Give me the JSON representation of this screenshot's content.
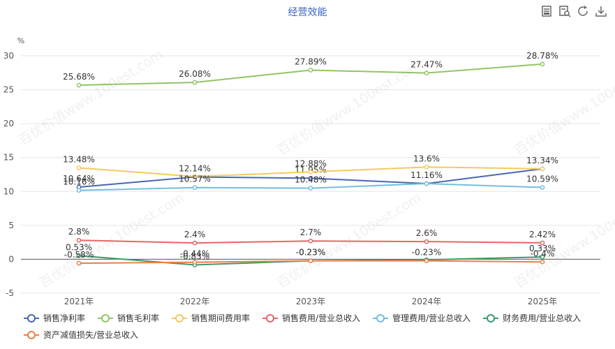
{
  "header": {
    "title": "经营效能"
  },
  "toolbar": [
    "data-view-icon",
    "zoom-icon",
    "restore-icon",
    "download-icon"
  ],
  "watermark": "百优价值www.100est.com",
  "chart_data": {
    "type": "line",
    "title": "经营效能",
    "ylabel": "%",
    "categories": [
      "2021年",
      "2022年",
      "2023年",
      "2024年",
      "2025年"
    ],
    "ylim": [
      -5,
      30
    ],
    "yticks": [
      -5,
      0,
      5,
      10,
      15,
      20,
      25,
      30
    ],
    "grid": true,
    "legend_position": "bottom",
    "series": [
      {
        "name": "销售净利率",
        "color": "#4a66b3",
        "values": [
          10.64,
          12.14,
          11.95,
          11.16,
          13.34
        ],
        "labels": [
          "10.64%",
          "12.14%",
          "11.95%",
          "11.16%",
          ""
        ]
      },
      {
        "name": "销售毛利率",
        "color": "#91c564",
        "values": [
          25.68,
          26.08,
          27.89,
          27.47,
          28.78
        ],
        "labels": [
          "25.68%",
          "26.08%",
          "27.89%",
          "27.47%",
          "28.78%"
        ]
      },
      {
        "name": "销售期间费用率",
        "color": "#f6c85f",
        "values": [
          13.48,
          12.2,
          12.88,
          13.6,
          13.34
        ],
        "labels": [
          "13.48%",
          "",
          "12.88%",
          "13.6%",
          "13.34%"
        ]
      },
      {
        "name": "销售费用/营业总收入",
        "color": "#e86468",
        "values": [
          2.8,
          2.4,
          2.7,
          2.6,
          2.42
        ],
        "labels": [
          "2.8%",
          "2.4%",
          "2.7%",
          "2.6%",
          "2.42%"
        ]
      },
      {
        "name": "管理费用/营业总收入",
        "color": "#72bfdd",
        "values": [
          10.16,
          10.57,
          10.48,
          11.16,
          10.59
        ],
        "labels": [
          "10.16%",
          "10.57%",
          "10.48%",
          "",
          "10.59%"
        ]
      },
      {
        "name": "财务费用/营业总收入",
        "color": "#3c9a6c",
        "values": [
          0.53,
          -0.83,
          -0.23,
          -0.08,
          0.33
        ],
        "labels": [
          "0.53%",
          "-0.83%",
          "-0.23%",
          "",
          "0.33%"
        ]
      },
      {
        "name": "资产减值损失/营业总收入",
        "color": "#ee7e46",
        "values": [
          -0.58,
          -0.44,
          -0.23,
          -0.23,
          -0.4
        ],
        "labels": [
          "-0.58%",
          "-0.44%",
          "-0.23%",
          "-0.23%",
          "-0.4%"
        ]
      }
    ]
  }
}
